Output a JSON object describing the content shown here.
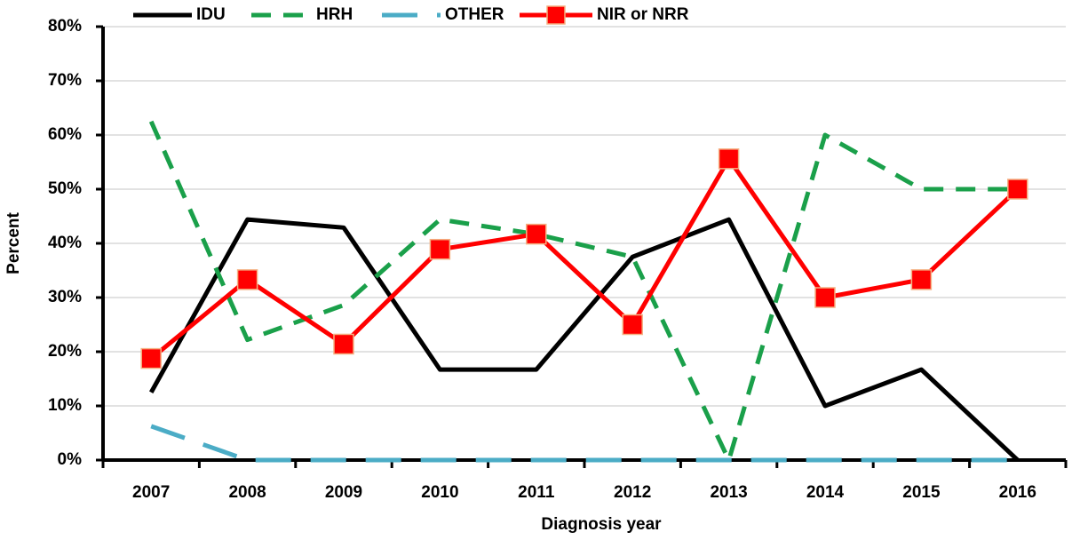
{
  "chart_data": {
    "type": "line",
    "x_label": "Diagnosis year",
    "y_label": "Percent",
    "categories": [
      "2007",
      "2008",
      "2009",
      "2010",
      "2011",
      "2012",
      "2013",
      "2014",
      "2015",
      "2016"
    ],
    "series": [
      {
        "name": "IDU",
        "color": "#000000",
        "dash": "solid",
        "values": [
          12.5,
          44.4,
          42.9,
          16.7,
          16.7,
          37.5,
          44.4,
          10,
          16.7,
          0
        ]
      },
      {
        "name": "HRH",
        "color": "#1aa04a",
        "dash": "dashed",
        "values": [
          62.5,
          22.2,
          28.6,
          44.4,
          41.7,
          37.5,
          0,
          60,
          50,
          50
        ]
      },
      {
        "name": "OTHER",
        "color": "#4bacc6",
        "dash": "long-dash",
        "values": [
          6.25,
          0,
          0,
          0,
          0,
          0,
          0,
          0,
          0,
          0
        ]
      },
      {
        "name": "NIR or NRR",
        "color": "#ff0000",
        "dash": "solid",
        "marker": "square",
        "values": [
          18.75,
          33.3,
          21.4,
          38.9,
          41.7,
          25,
          55.6,
          30,
          33.3,
          50
        ]
      }
    ],
    "ylim": [
      0,
      80
    ],
    "yticks": [
      {
        "value": 0,
        "label": "0%"
      },
      {
        "value": 10,
        "label": "10%"
      },
      {
        "value": 20,
        "label": "20%"
      },
      {
        "value": 30,
        "label": "30%"
      },
      {
        "value": 40,
        "label": "40%"
      },
      {
        "value": 50,
        "label": "50%"
      },
      {
        "value": 60,
        "label": "60%"
      },
      {
        "value": 70,
        "label": "70%"
      },
      {
        "value": 80,
        "label": "80%"
      }
    ],
    "grid": true,
    "legend": "top"
  }
}
